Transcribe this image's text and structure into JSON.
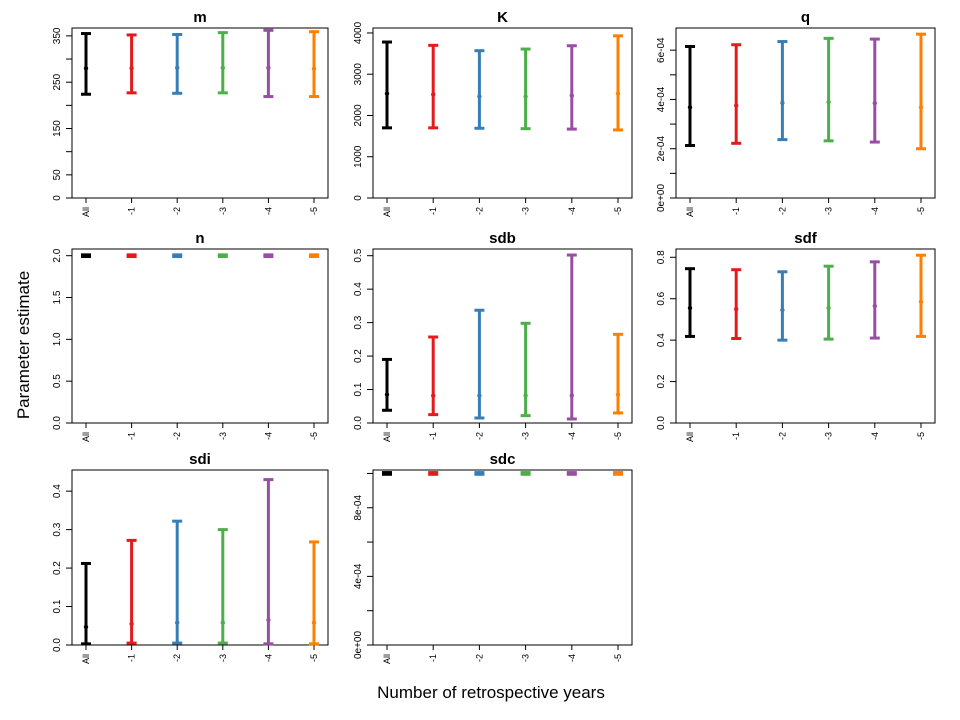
{
  "figure": {
    "ylabel": "Parameter estimate",
    "xlabel": "Number of retrospective years"
  },
  "colors": {
    "All": "#000000",
    "-1": "#e41a1c",
    "-2": "#377eb8",
    "-3": "#4daf4a",
    "-4": "#984ea3",
    "-5": "#ff7f00"
  },
  "chart_data": [
    {
      "type": "errorbar",
      "title": "m",
      "categories": [
        "All",
        "-1",
        "-2",
        "-3",
        "-4",
        "-5"
      ],
      "values": [
        280,
        280,
        281,
        281,
        281,
        279
      ],
      "lower": [
        224,
        227,
        226,
        227,
        219,
        219
      ],
      "upper": [
        355,
        352,
        353,
        357,
        362,
        359
      ],
      "ylim": [
        0,
        367
      ],
      "yticks": [
        0,
        50,
        100,
        150,
        200,
        250,
        300,
        350
      ],
      "ytick_labels": [
        "0",
        "50",
        "",
        "150",
        "",
        "250",
        "",
        "350"
      ]
    },
    {
      "type": "errorbar",
      "title": "K",
      "categories": [
        "All",
        "-1",
        "-2",
        "-3",
        "-4",
        "-5"
      ],
      "values": [
        2530,
        2510,
        2460,
        2460,
        2480,
        2530
      ],
      "lower": [
        1700,
        1700,
        1690,
        1680,
        1670,
        1650
      ],
      "upper": [
        3780,
        3700,
        3570,
        3610,
        3690,
        3930
      ],
      "ylim": [
        0,
        4120
      ],
      "yticks": [
        0,
        1000,
        2000,
        3000,
        4000
      ],
      "ytick_labels": [
        "0",
        "1000",
        "2000",
        "3000",
        "4000"
      ]
    },
    {
      "type": "errorbar",
      "title": "q",
      "categories": [
        "All",
        "-1",
        "-2",
        "-3",
        "-4",
        "-5"
      ],
      "values": [
        0.000368,
        0.000375,
        0.000386,
        0.000389,
        0.000385,
        0.000368
      ],
      "lower": [
        0.000213,
        0.000222,
        0.000237,
        0.000232,
        0.000227,
        0.0002
      ],
      "upper": [
        0.000615,
        0.000622,
        0.000635,
        0.000648,
        0.000645,
        0.000665
      ],
      "ylim": [
        0,
        0.00069
      ],
      "yticks": [
        0,
        0.0001,
        0.0002,
        0.0003,
        0.0004,
        0.0005,
        0.0006
      ],
      "ytick_labels": [
        "0e+00",
        "",
        "2e-04",
        "",
        "4e-04",
        "",
        "6e-04"
      ]
    },
    {
      "type": "errorbar",
      "title": "n",
      "categories": [
        "All",
        "-1",
        "-2",
        "-3",
        "-4",
        "-5"
      ],
      "values": [
        2.0,
        2.0,
        2.0,
        2.0,
        2.0,
        2.0
      ],
      "lower": [
        1.99,
        1.99,
        1.99,
        1.99,
        1.99,
        1.99
      ],
      "upper": [
        2.01,
        2.01,
        2.01,
        2.01,
        2.01,
        2.01
      ],
      "ylim": [
        0,
        2.08
      ],
      "yticks": [
        0,
        0.5,
        1.0,
        1.5,
        2.0
      ],
      "ytick_labels": [
        "0.0",
        "0.5",
        "1.0",
        "1.5",
        "2.0"
      ]
    },
    {
      "type": "errorbar",
      "title": "sdb",
      "categories": [
        "All",
        "-1",
        "-2",
        "-3",
        "-4",
        "-5"
      ],
      "values": [
        0.085,
        0.082,
        0.082,
        0.082,
        0.082,
        0.085
      ],
      "lower": [
        0.038,
        0.025,
        0.015,
        0.022,
        0.012,
        0.03
      ],
      "upper": [
        0.19,
        0.257,
        0.337,
        0.298,
        0.502,
        0.265
      ],
      "ylim": [
        0,
        0.52
      ],
      "yticks": [
        0,
        0.1,
        0.2,
        0.3,
        0.4,
        0.5
      ],
      "ytick_labels": [
        "0.0",
        "0.1",
        "0.2",
        "0.3",
        "0.4",
        "0.5"
      ]
    },
    {
      "type": "errorbar",
      "title": "sdf",
      "categories": [
        "All",
        "-1",
        "-2",
        "-3",
        "-4",
        "-5"
      ],
      "values": [
        0.555,
        0.55,
        0.545,
        0.555,
        0.565,
        0.585
      ],
      "lower": [
        0.418,
        0.408,
        0.4,
        0.405,
        0.41,
        0.418
      ],
      "upper": [
        0.745,
        0.74,
        0.73,
        0.757,
        0.778,
        0.81
      ],
      "ylim": [
        0,
        0.84
      ],
      "yticks": [
        0,
        0.2,
        0.4,
        0.6,
        0.8
      ],
      "ytick_labels": [
        "0.0",
        "0.2",
        "0.4",
        "0.6",
        "0.8"
      ]
    },
    {
      "type": "errorbar",
      "title": "sdi",
      "categories": [
        "All",
        "-1",
        "-2",
        "-3",
        "-4",
        "-5"
      ],
      "values": [
        0.047,
        0.055,
        0.058,
        0.058,
        0.065,
        0.058
      ],
      "lower": [
        0.003,
        0.005,
        0.005,
        0.005,
        0.003,
        0.003
      ],
      "upper": [
        0.212,
        0.272,
        0.322,
        0.3,
        0.43,
        0.268
      ],
      "ylim": [
        0,
        0.455
      ],
      "yticks": [
        0,
        0.1,
        0.2,
        0.3,
        0.4
      ],
      "ytick_labels": [
        "0.0",
        "0.1",
        "0.2",
        "0.3",
        "0.4"
      ]
    },
    {
      "type": "errorbar",
      "title": "sdc",
      "categories": [
        "All",
        "-1",
        "-2",
        "-3",
        "-4",
        "-5"
      ],
      "values": [
        0.001,
        0.001,
        0.001,
        0.001,
        0.001,
        0.001
      ],
      "lower": [
        0.000995,
        0.000995,
        0.000995,
        0.000995,
        0.000995,
        0.000995
      ],
      "upper": [
        0.001005,
        0.001005,
        0.001005,
        0.001005,
        0.001005,
        0.001005
      ],
      "ylim": [
        0,
        0.00102
      ],
      "yticks": [
        0,
        0.0002,
        0.0004,
        0.0006,
        0.0008,
        0.001
      ],
      "ytick_labels": [
        "0e+00",
        "",
        "4e-04",
        "",
        "8e-04",
        ""
      ]
    }
  ]
}
